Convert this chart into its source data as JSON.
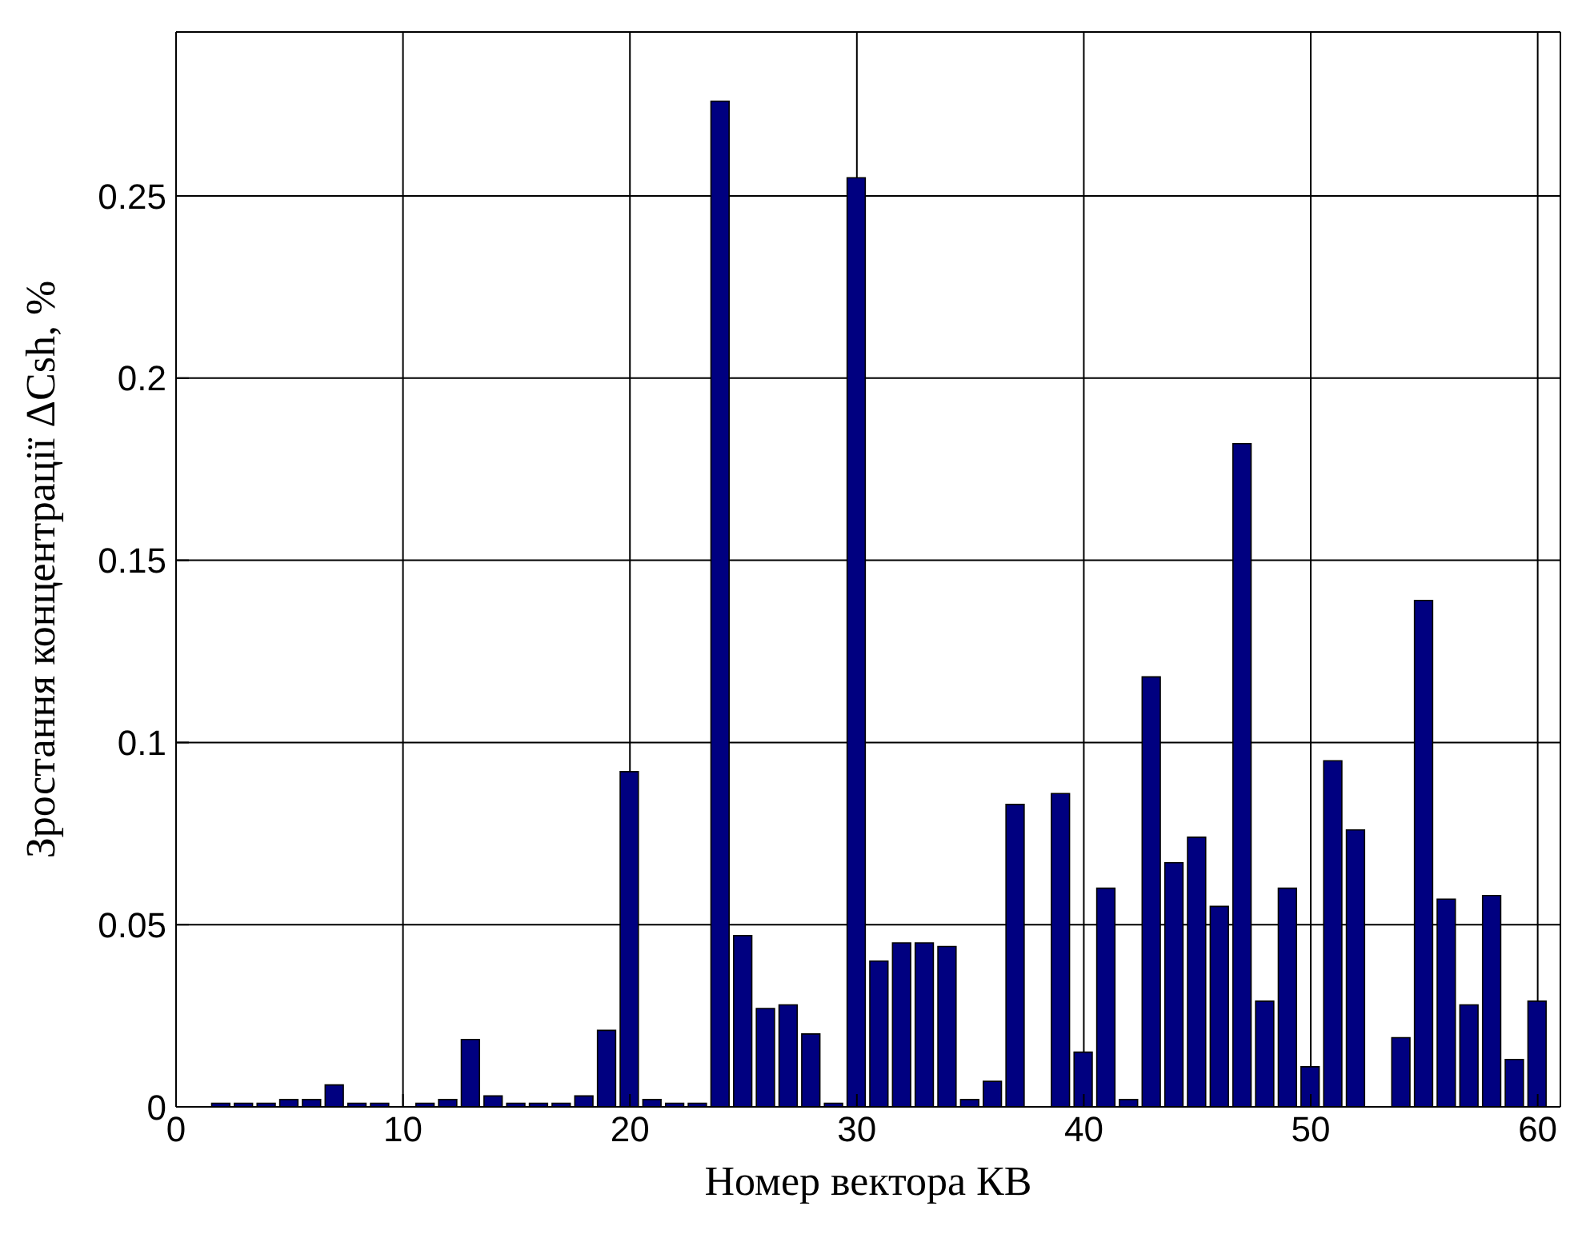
{
  "chart_data": {
    "type": "bar",
    "xlabel": "Номер вектора КВ",
    "ylabel": "Зростання концентрації ΔCsh, %",
    "x": [
      1,
      2,
      3,
      4,
      5,
      6,
      7,
      8,
      9,
      10,
      11,
      12,
      13,
      14,
      15,
      16,
      17,
      18,
      19,
      20,
      21,
      22,
      23,
      24,
      25,
      26,
      27,
      28,
      29,
      30,
      31,
      32,
      33,
      34,
      35,
      36,
      37,
      38,
      39,
      40,
      41,
      42,
      43,
      44,
      45,
      46,
      47,
      48,
      49,
      50,
      51,
      52,
      53,
      54,
      55,
      56,
      57,
      58,
      59,
      60
    ],
    "values": [
      0,
      0.001,
      0.001,
      0.001,
      0.002,
      0.002,
      0.006,
      0.001,
      0.001,
      0,
      0.001,
      0.002,
      0.0185,
      0.003,
      0.001,
      0.001,
      0.001,
      0.003,
      0.021,
      0.092,
      0.002,
      0.001,
      0.001,
      0.276,
      0.047,
      0.027,
      0.028,
      0.02,
      0.001,
      0.255,
      0.04,
      0.045,
      0.045,
      0.044,
      0.002,
      0.007,
      0.083,
      0,
      0.086,
      0.015,
      0.06,
      0.002,
      0.118,
      0.067,
      0.074,
      0.055,
      0.182,
      0.029,
      0.06,
      0.011,
      0.095,
      0.076,
      0,
      0.019,
      0.139,
      0.057,
      0.028,
      0.058,
      0.013,
      0.029
    ],
    "color": "#000080",
    "xlim": [
      0,
      61
    ],
    "xticks": [
      0,
      10,
      20,
      30,
      40,
      50,
      60
    ],
    "ylim": [
      0,
      0.295
    ],
    "yticks": [
      0,
      0.05,
      0.1,
      0.15,
      0.2,
      0.25
    ],
    "grid": true
  }
}
